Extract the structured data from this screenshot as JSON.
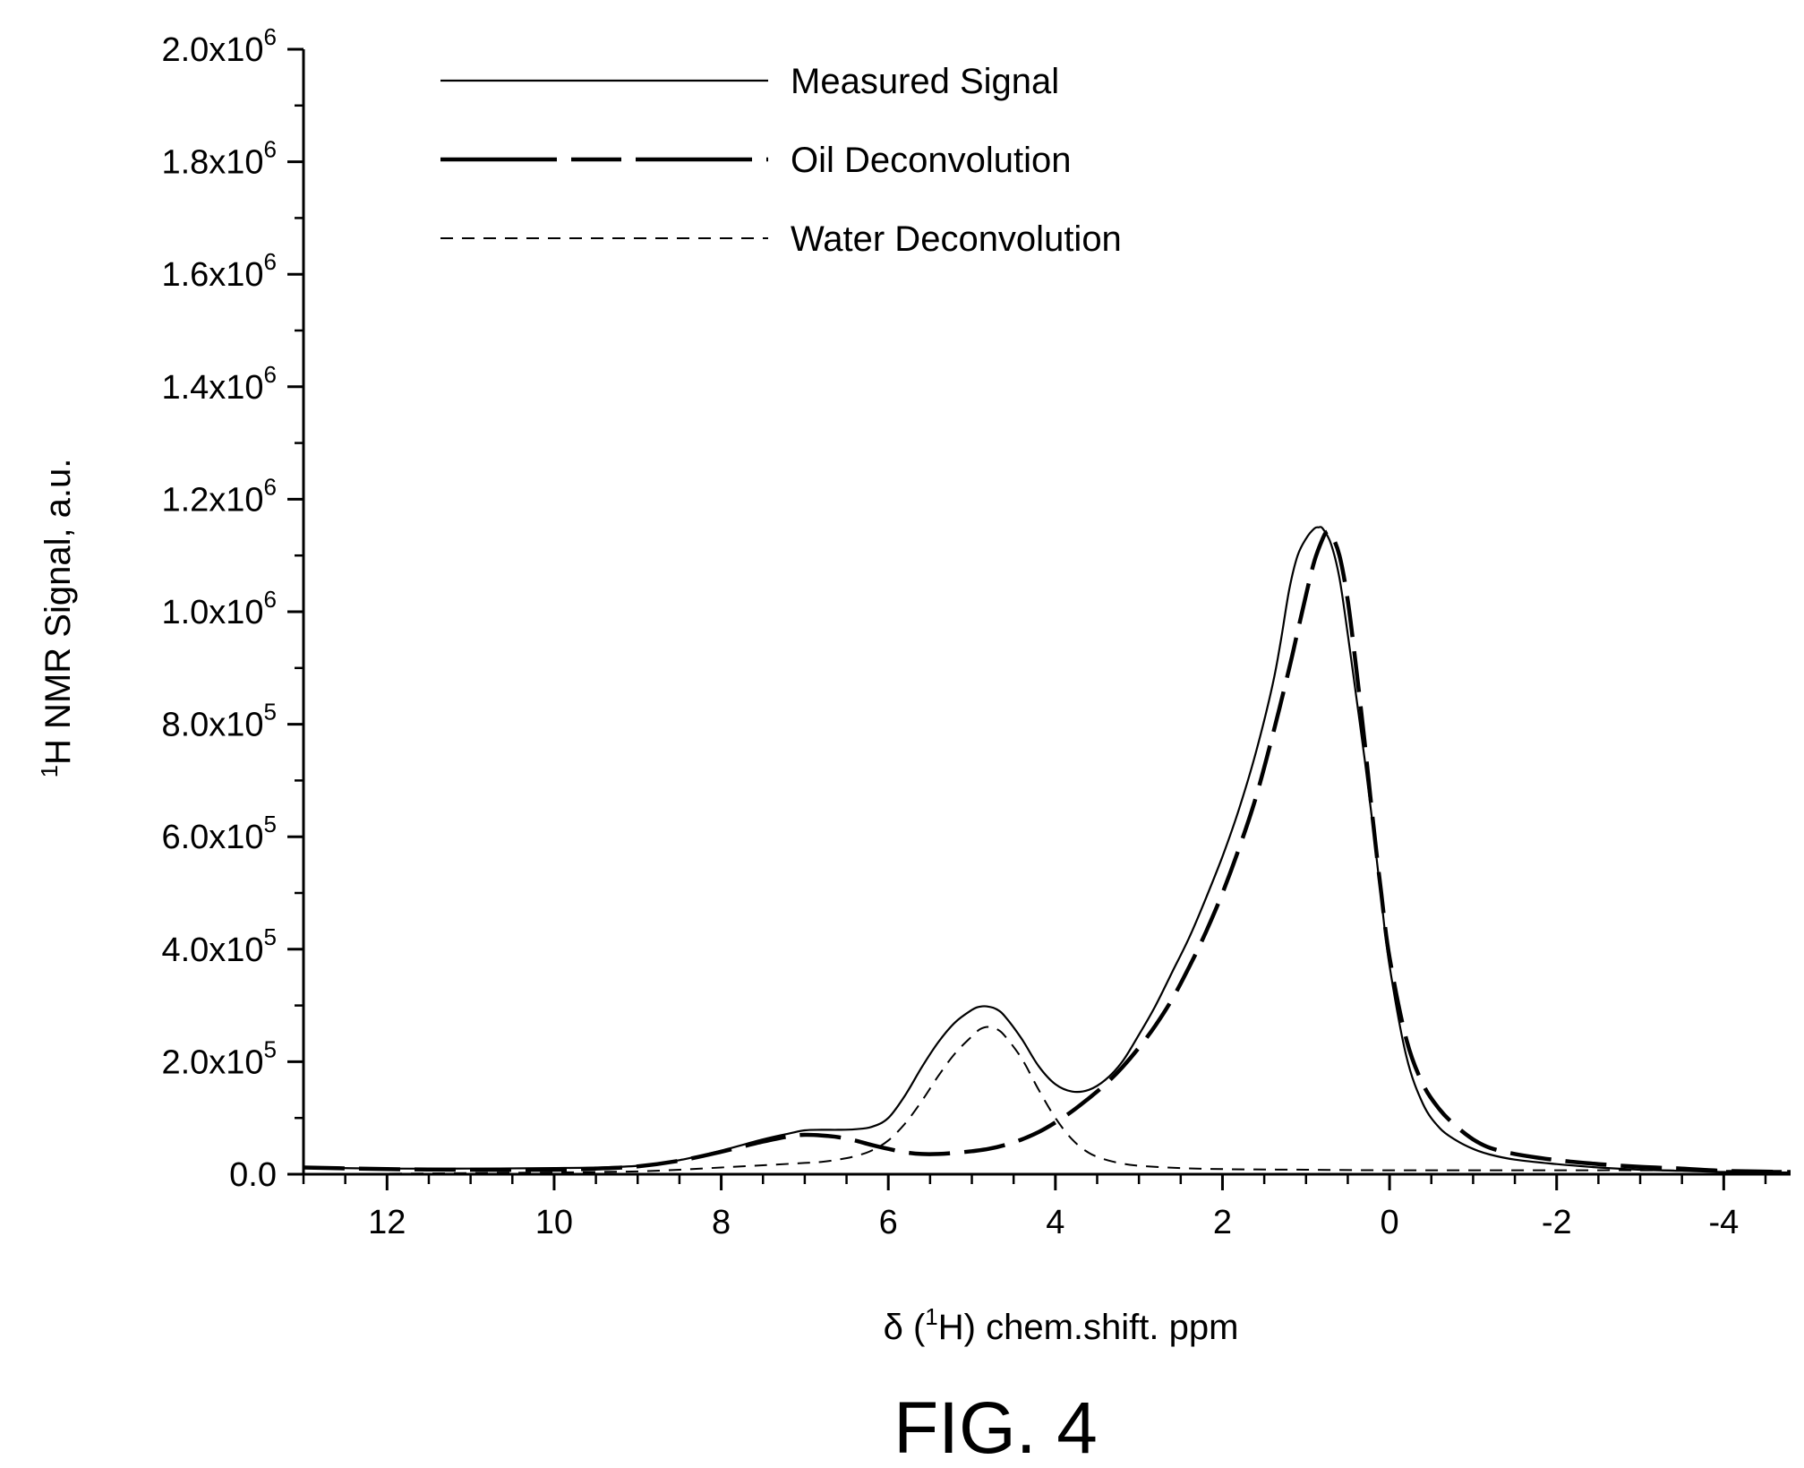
{
  "chart_data": {
    "type": "line",
    "title": "",
    "figure_caption": "FIG. 4",
    "xlabel": {
      "prefix": "δ (",
      "sup": "1",
      "suffix": "H) chem.shift. ppm"
    },
    "ylabel": {
      "sup": "1",
      "text": "H NMR Signal, a.u."
    },
    "xlim": [
      13,
      -4.8
    ],
    "ylim": [
      0,
      2000000
    ],
    "x_reversed": true,
    "x_ticks": [
      12,
      10,
      8,
      6,
      4,
      2,
      0,
      -2,
      -4
    ],
    "x_tick_labels": [
      "12",
      "10",
      "8",
      "6",
      "4",
      "2",
      "0",
      "-2",
      "-4"
    ],
    "y_ticks": [
      0,
      200000,
      400000,
      600000,
      800000,
      1000000,
      1200000,
      1400000,
      1600000,
      1800000,
      2000000
    ],
    "y_tick_labels": [
      {
        "base": "0.0",
        "exp": ""
      },
      {
        "base": "2.0x10",
        "exp": "5"
      },
      {
        "base": "4.0x10",
        "exp": "5"
      },
      {
        "base": "6.0x10",
        "exp": "5"
      },
      {
        "base": "8.0x10",
        "exp": "5"
      },
      {
        "base": "1.0x10",
        "exp": "6"
      },
      {
        "base": "1.2x10",
        "exp": "6"
      },
      {
        "base": "1.4x10",
        "exp": "6"
      },
      {
        "base": "1.6x10",
        "exp": "6"
      },
      {
        "base": "1.8x10",
        "exp": "6"
      },
      {
        "base": "2.0x10",
        "exp": "6"
      }
    ],
    "legend": {
      "placement": "top-left"
    },
    "series": [
      {
        "name": "Measured Signal",
        "style": "solid-thin",
        "x": [
          13,
          12,
          11,
          10,
          9.5,
          9,
          8.5,
          8,
          7.5,
          7.2,
          7,
          6.8,
          6.6,
          6.4,
          6.2,
          6,
          5.8,
          5.6,
          5.4,
          5.2,
          5,
          4.9,
          4.8,
          4.7,
          4.6,
          4.4,
          4.2,
          4,
          3.8,
          3.6,
          3.4,
          3.2,
          3,
          2.8,
          2.6,
          2.4,
          2.2,
          2,
          1.8,
          1.6,
          1.4,
          1.3,
          1.2,
          1.1,
          1,
          0.9,
          0.85,
          0.8,
          0.7,
          0.6,
          0.5,
          0.4,
          0.3,
          0.2,
          0.1,
          0,
          -0.2,
          -0.4,
          -0.6,
          -0.8,
          -1,
          -1.2,
          -1.5,
          -2,
          -2.5,
          -3,
          -3.5,
          -4,
          -4.8
        ],
        "y": [
          12000,
          10000,
          10000,
          11000,
          12000,
          15000,
          25000,
          42000,
          62000,
          72000,
          78000,
          79000,
          79000,
          80000,
          84000,
          100000,
          140000,
          190000,
          235000,
          270000,
          292000,
          298000,
          298000,
          293000,
          280000,
          240000,
          192000,
          160000,
          147000,
          150000,
          168000,
          200000,
          248000,
          300000,
          360000,
          420000,
          490000,
          565000,
          650000,
          750000,
          870000,
          950000,
          1040000,
          1100000,
          1130000,
          1148000,
          1150000,
          1148000,
          1120000,
          1060000,
          960000,
          850000,
          740000,
          620000,
          490000,
          370000,
          210000,
          125000,
          82000,
          60000,
          45000,
          35000,
          26000,
          18000,
          12000,
          8000,
          6000,
          4000,
          3000
        ]
      },
      {
        "name": "Oil Deconvolution",
        "style": "long-dash-thick",
        "x": [
          13,
          12,
          11,
          10,
          9.5,
          9,
          8.5,
          8,
          7.5,
          7.2,
          7,
          6.8,
          6.6,
          6.4,
          6.2,
          6,
          5.8,
          5.6,
          5.4,
          5.2,
          5,
          4.8,
          4.6,
          4.4,
          4.2,
          4,
          3.8,
          3.6,
          3.4,
          3.2,
          3,
          2.8,
          2.6,
          2.4,
          2.2,
          2,
          1.8,
          1.6,
          1.4,
          1.2,
          1.1,
          1,
          0.9,
          0.8,
          0.75,
          0.7,
          0.6,
          0.5,
          0.4,
          0.3,
          0.2,
          0.1,
          0,
          -0.2,
          -0.4,
          -0.6,
          -0.8,
          -1,
          -1.2,
          -1.5,
          -2,
          -2.5,
          -3,
          -3.5,
          -4,
          -4.8
        ],
        "y": [
          12000,
          9000,
          8000,
          8000,
          10000,
          14000,
          24000,
          40000,
          58000,
          67000,
          70000,
          69000,
          66000,
          60000,
          52000,
          45000,
          39000,
          36000,
          36000,
          38000,
          41000,
          45000,
          52000,
          62000,
          75000,
          92000,
          112000,
          135000,
          160000,
          190000,
          225000,
          265000,
          312000,
          368000,
          430000,
          500000,
          580000,
          670000,
          780000,
          900000,
          965000,
          1030000,
          1090000,
          1130000,
          1142000,
          1138000,
          1100000,
          1020000,
          900000,
          770000,
          630000,
          500000,
          385000,
          240000,
          160000,
          115000,
          85000,
          62000,
          47000,
          36000,
          25000,
          18000,
          13000,
          10000,
          6000,
          4000
        ]
      },
      {
        "name": "Water Deconvolution",
        "style": "short-dash-thin",
        "x": [
          13,
          12,
          11,
          10,
          9.5,
          9,
          8.5,
          8,
          7.5,
          7,
          6.8,
          6.6,
          6.4,
          6.2,
          6,
          5.8,
          5.6,
          5.4,
          5.2,
          5,
          4.9,
          4.8,
          4.7,
          4.6,
          4.4,
          4.2,
          4,
          3.8,
          3.6,
          3.4,
          3.2,
          3,
          2.5,
          2,
          1,
          0,
          -1,
          -2,
          -3,
          -4,
          -4.8
        ],
        "y": [
          0,
          1000,
          2000,
          3000,
          4000,
          5000,
          8000,
          12000,
          16000,
          20000,
          22000,
          26000,
          32000,
          42000,
          60000,
          90000,
          130000,
          175000,
          215000,
          245000,
          258000,
          262000,
          258000,
          245000,
          205000,
          150000,
          100000,
          62000,
          38000,
          26000,
          19000,
          15000,
          11000,
          9000,
          8000,
          7000,
          7000,
          7000,
          7000,
          6000,
          6000
        ]
      }
    ]
  }
}
